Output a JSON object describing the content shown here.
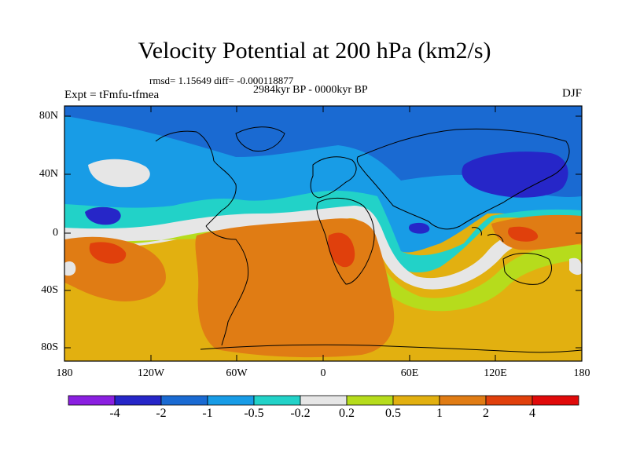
{
  "title": "Velocity Potential at 200 hPa (km2/s)",
  "stats": "rmsd= 1.15649 diff= -0.000118877",
  "period": "2984kyr BP - 0000kyr BP",
  "experiment": "Expt = tFmfu-tfmea",
  "season": "DJF",
  "y_labels": [
    "80N",
    "40N",
    "0",
    "40S",
    "80S"
  ],
  "x_labels": [
    "180",
    "120W",
    "60W",
    "0",
    "60E",
    "120E",
    "180"
  ],
  "colorbar": {
    "labels": [
      "-4",
      "-2",
      "-1",
      "-0.5",
      "-0.2",
      "0.2",
      "0.5",
      "1",
      "2",
      "4"
    ],
    "colors": [
      "#8a1fe0",
      "#2626c8",
      "#1a6ad2",
      "#189ce6",
      "#22d2c8",
      "#e6e6e6",
      "#b6dc1c",
      "#e2b010",
      "#e07c14",
      "#e0400c",
      "#e00a0a"
    ]
  }
}
